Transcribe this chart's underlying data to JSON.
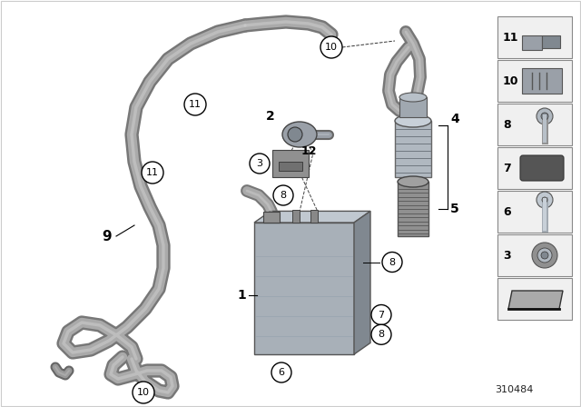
{
  "bg_color": "#ffffff",
  "fig_width": 6.4,
  "fig_height": 4.48,
  "dpi": 100,
  "diagram_id": "310484",
  "tube_color_dark": "#888888",
  "tube_color_mid": "#aaaaaa",
  "tube_color_light": "#cccccc",
  "canister_front": "#a8b0b8",
  "canister_top": "#c0c8d0",
  "canister_right": "#808890",
  "part_gray": "#9aa0a8",
  "sidebar_items": [
    11,
    10,
    8,
    7,
    6,
    3,
    -1
  ]
}
